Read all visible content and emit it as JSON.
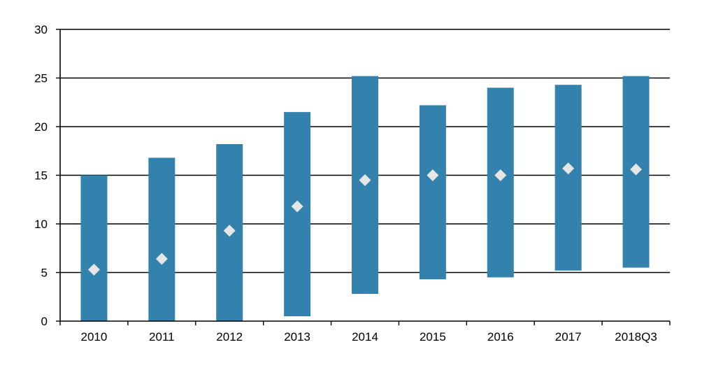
{
  "chart_data": {
    "type": "bar",
    "title": "",
    "xlabel": "",
    "ylabel": "",
    "categories": [
      "2010",
      "2011",
      "2012",
      "2013",
      "2014",
      "2015",
      "2016",
      "2017",
      "2018Q3"
    ],
    "series": [
      {
        "kind": "range",
        "low": [
          0,
          0,
          0,
          0.5,
          2.8,
          4.3,
          4.5,
          5.2,
          5.5
        ],
        "high": [
          15.0,
          16.8,
          18.2,
          21.5,
          25.2,
          22.2,
          24.0,
          24.3,
          25.2
        ]
      },
      {
        "kind": "marker",
        "values": [
          5.3,
          6.4,
          9.3,
          11.8,
          14.5,
          15.0,
          15.0,
          15.7,
          15.6
        ]
      }
    ],
    "ylim": [
      0,
      30
    ],
    "yticks": [
      "0",
      "5",
      "10",
      "15",
      "20",
      "25",
      "30"
    ],
    "grid": true,
    "colors": {
      "bar": "#3282ad",
      "marker": "#e6e6e6",
      "grid": "#000000"
    }
  }
}
